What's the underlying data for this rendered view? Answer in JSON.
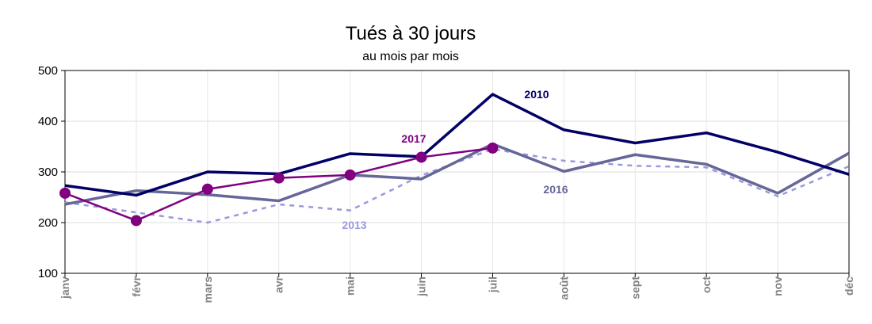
{
  "chart_data": {
    "type": "line",
    "title": "Tués à 30 jours",
    "subtitle": "au mois par mois",
    "xlabel": "",
    "ylabel": "",
    "ylim": [
      100,
      500
    ],
    "yticks": [
      100,
      200,
      300,
      400,
      500
    ],
    "grid": true,
    "legend": "inline-labels",
    "categories": [
      "janv",
      "févr",
      "mars",
      "avr",
      "mai",
      "juin",
      "juil",
      "août",
      "sept",
      "oct",
      "nov",
      "déc"
    ],
    "series": [
      {
        "name": "2010",
        "color": "#000066",
        "style": "solid-thick",
        "values": [
          273,
          254,
          300,
          296,
          336,
          330,
          453,
          383,
          357,
          377,
          339,
          295
        ]
      },
      {
        "name": "2013",
        "color": "#9999dd",
        "style": "dashed",
        "values": [
          240,
          220,
          200,
          236,
          224,
          293,
          345,
          322,
          312,
          309,
          252,
          311
        ]
      },
      {
        "name": "2016",
        "color": "#666699",
        "style": "solid-thick",
        "values": [
          236,
          263,
          255,
          243,
          294,
          286,
          355,
          301,
          334,
          315,
          258,
          337
        ]
      },
      {
        "name": "2017",
        "color": "#800080",
        "style": "solid-markers",
        "values": [
          258,
          204,
          266,
          288,
          294,
          329,
          347,
          null,
          null,
          null,
          null,
          null
        ]
      }
    ]
  }
}
